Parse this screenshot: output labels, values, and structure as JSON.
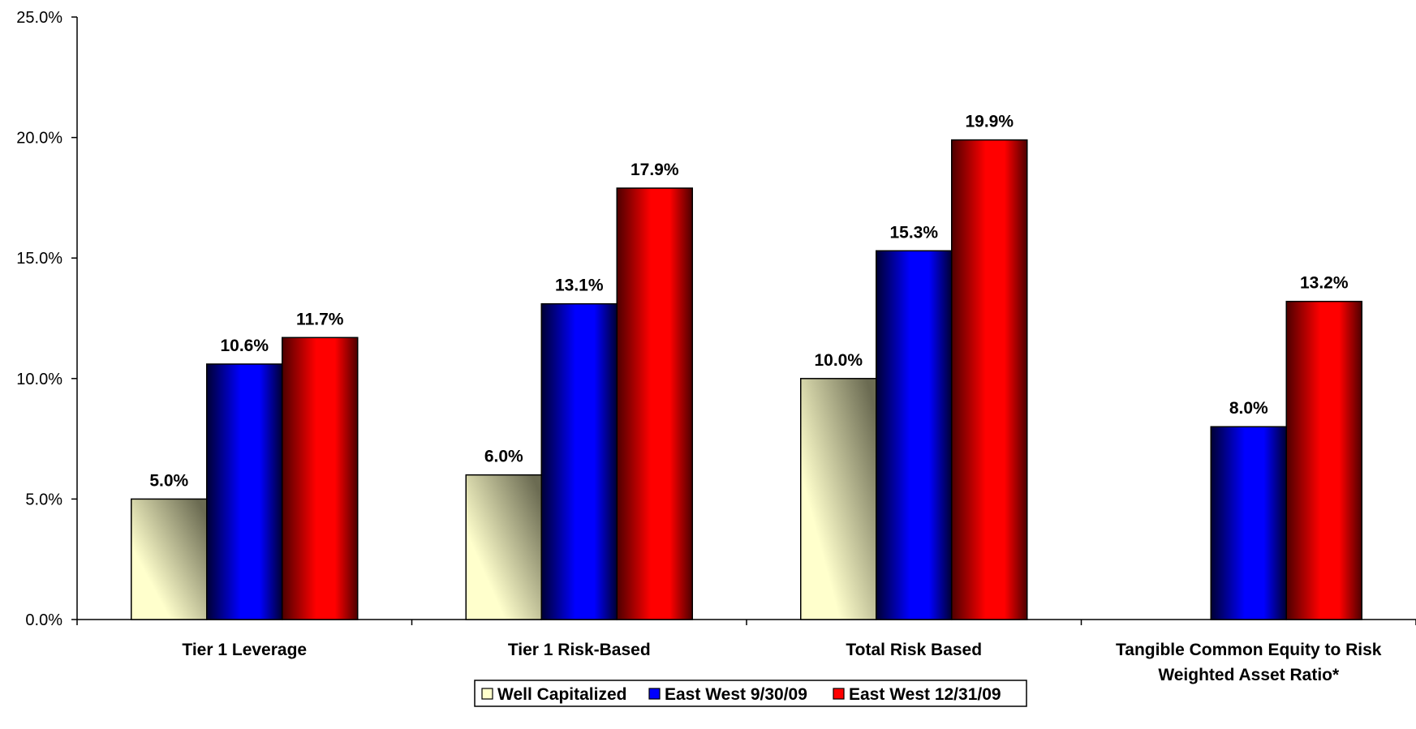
{
  "chart_data": {
    "type": "bar",
    "categories": [
      [
        "Tier 1 Leverage"
      ],
      [
        "Tier 1 Risk-Based"
      ],
      [
        "Total Risk Based"
      ],
      [
        "Tangible Common Equity to Risk",
        "Weighted Asset Ratio*"
      ]
    ],
    "series": [
      {
        "name": "Well Capitalized",
        "values": [
          5.0,
          6.0,
          10.0,
          null
        ],
        "labels": [
          "5.0%",
          "6.0%",
          "10.0%",
          ""
        ],
        "color_light": "#ffffcc",
        "color_dark": "#6b6b52"
      },
      {
        "name": "East West 9/30/09",
        "values": [
          10.6,
          13.1,
          15.3,
          8.0
        ],
        "labels": [
          "10.6%",
          "13.1%",
          "15.3%",
          "8.0%"
        ],
        "color_light": "#0000ff",
        "color_dark": "#000033"
      },
      {
        "name": "East West 12/31/09",
        "values": [
          11.7,
          17.9,
          19.9,
          13.2
        ],
        "labels": [
          "11.7%",
          "17.9%",
          "19.9%",
          "13.2%"
        ],
        "color_light": "#ff0000",
        "color_dark": "#4d0000"
      }
    ],
    "ylim": [
      0,
      25
    ],
    "yticks": [
      "0.0%",
      "5.0%",
      "10.0%",
      "15.0%",
      "20.0%",
      "25.0%"
    ],
    "legend_position": "bottom-center",
    "gridlines": false
  }
}
